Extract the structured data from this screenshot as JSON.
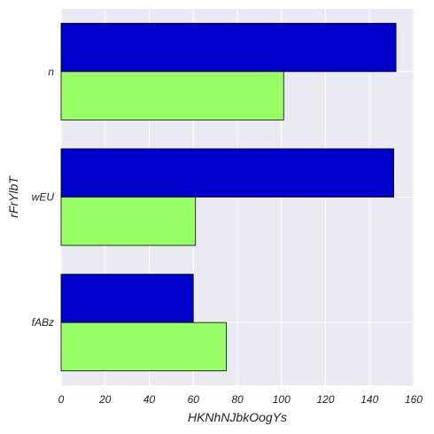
{
  "chart_data": {
    "type": "bar",
    "orientation": "horizontal",
    "categories": [
      "fABz",
      "wEU",
      "n"
    ],
    "series": [
      {
        "color": "#0000cc",
        "values": [
          60,
          151,
          152
        ]
      },
      {
        "color": "#99ff66",
        "values": [
          75,
          61,
          101
        ]
      }
    ],
    "xlabel": "HKNhNJbkOogYs",
    "ylabel": "rFrYlbT",
    "xlim": [
      0,
      160
    ],
    "xticks": [
      0,
      20,
      40,
      60,
      80,
      100,
      120,
      140,
      160
    ],
    "grid": true,
    "background": "#eaeaf2",
    "edge_color": "#000000"
  }
}
